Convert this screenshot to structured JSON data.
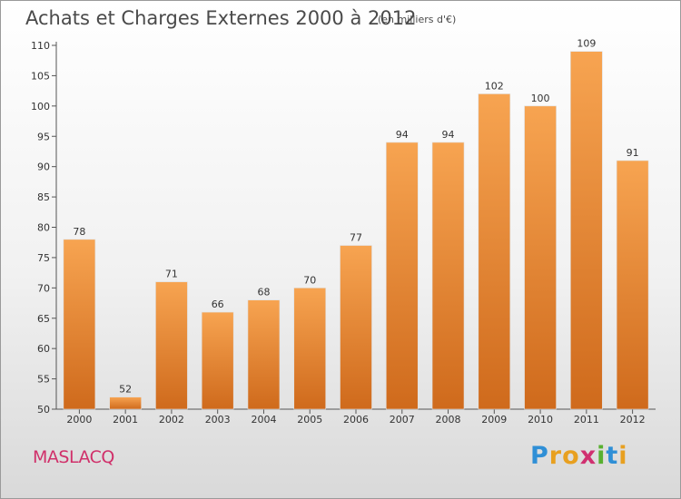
{
  "chart_data": {
    "type": "bar",
    "title": "Achats et Charges Externes 2000 à 2012",
    "subtitle": "(en milliers d'€)",
    "categories": [
      "2000",
      "2001",
      "2002",
      "2003",
      "2004",
      "2005",
      "2006",
      "2007",
      "2008",
      "2009",
      "2010",
      "2011",
      "2012"
    ],
    "values": [
      78,
      52,
      71,
      66,
      68,
      70,
      77,
      94,
      94,
      102,
      100,
      109,
      91
    ],
    "ylim": [
      50,
      110
    ],
    "yticks": [
      50,
      55,
      60,
      65,
      70,
      75,
      80,
      85,
      90,
      95,
      100,
      105,
      110
    ],
    "grid": false,
    "bar_color": "#f0943a",
    "bar_color_dark": "#d06a1e"
  },
  "footer": {
    "town": "MASLACQ",
    "logo_letters": [
      {
        "ch": "P",
        "color": "#2f8fd6"
      },
      {
        "ch": "r",
        "color": "#e8a020"
      },
      {
        "ch": "o",
        "color": "#e8a020"
      },
      {
        "ch": "x",
        "color": "#d03070"
      },
      {
        "ch": "i",
        "color": "#58b030"
      },
      {
        "ch": "t",
        "color": "#2f8fd6"
      },
      {
        "ch": "i",
        "color": "#e8a020"
      }
    ]
  }
}
